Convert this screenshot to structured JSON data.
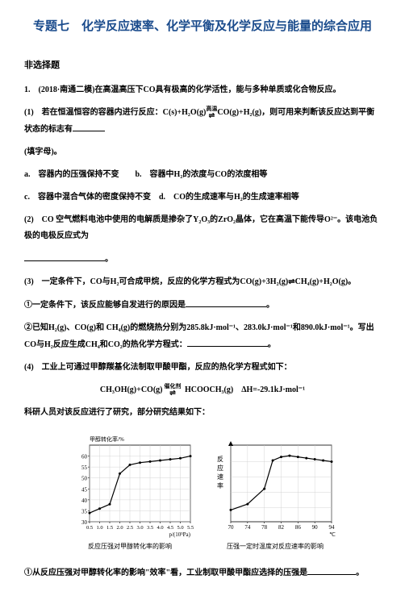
{
  "title": "专题七　化学反应速率、化学平衡及化学反应与能量的综合应用",
  "section_heading": "非选择题",
  "q1_intro": "1.　(2018·南通二模)在高温高压下CO具有极高的化学活性，能与多种单质或化合物反应。",
  "q1_1_prefix": "(1)　若在恒温恒容的容器内进行反应：C(s)+H₂O(g)",
  "q1_1_over": "高温",
  "q1_1_suffix": "CO(g)+H₂(g)，则可用来判断该反应达到平衡状态的标志有",
  "q1_1_tail": "(填字母)。",
  "opt_a": "a.　容器内的压强保持不变",
  "opt_b": "b.　容器中H₂的浓度与CO的浓度相等",
  "opt_c": "c.　容器中混合气体的密度保持不变",
  "opt_d": "d.　CO的生成速率与H₂的生成速率相等",
  "q1_2_prefix": "(2)　CO 空气燃料电池中使用的电解质是掺杂了Y₂O₃的ZrO₂晶体，它在高温下能传导O²⁻。该电池负极的电极反应式为",
  "period": "。",
  "q1_3": "(3)　一定条件下，CO与H₂可合成甲烷，反应的化学方程式为CO(g)+3H₂(g)⇌CH₄(g)+H₂O(g)。",
  "q1_3_1_prefix": "①一定条件下，该反应能够自发进行的原因是",
  "q1_3_2_prefix": "②已知H₂(g)、CO(g)和 CH₄(g)的燃烧热分别为285.8kJ·mol⁻¹、283.0kJ·mol⁻¹和890.0kJ·mol⁻¹。写出CO与H₂反应生成CH₄和CO₂的热化学方程式：",
  "q1_4": "(4)　工业上可通过甲醇羰基化法制取甲酸甲酯，反应的热化学方程式如下：",
  "eq_prefix": "CH₃OH(g)+CO(g)",
  "eq_over": "催化剂",
  "eq_suffix": " HCOOCH₃(g)　ΔH=-29.1kJ·mol⁻¹",
  "q1_4_study": "科研人员对该反应进行了研究，部分研究结果如下：",
  "chart1_caption": "反应压强对甲醇转化率的影响",
  "chart1_ylabel": "甲醇转化率/%",
  "chart1_xlabel": "p/(10⁵Pa)",
  "chart1_xlim": [
    0.5,
    5.5
  ],
  "chart1_ylim": [
    30,
    65
  ],
  "chart1_xticks": [
    0.5,
    1.0,
    1.5,
    2.0,
    2.5,
    3.0,
    3.5,
    4.0,
    4.5,
    5.0,
    5.5
  ],
  "chart1_yticks": [
    30,
    35,
    40,
    45,
    50,
    55,
    60
  ],
  "chart1_points": [
    [
      0.5,
      34
    ],
    [
      1.0,
      36
    ],
    [
      1.5,
      38
    ],
    [
      2.0,
      52
    ],
    [
      2.5,
      56
    ],
    [
      3.0,
      57
    ],
    [
      3.5,
      57.5
    ],
    [
      4.0,
      58
    ],
    [
      4.5,
      58.5
    ],
    [
      5.0,
      59
    ],
    [
      5.5,
      60
    ]
  ],
  "chart1_line_color": "#000000",
  "chart1_background": "#ffffff",
  "chart1_grid_color": "#cccccc",
  "chart2_caption": "压强一定时温度对反应速率的影响",
  "chart2_ylabel": "反应速率",
  "chart2_xlim": [
    70,
    94
  ],
  "chart2_xticks": [
    70,
    74,
    78,
    82,
    86,
    90,
    94
  ],
  "chart2_xunit": "℃",
  "chart2_points": [
    [
      70,
      10
    ],
    [
      74,
      15
    ],
    [
      78,
      28
    ],
    [
      80,
      52
    ],
    [
      82,
      55
    ],
    [
      84,
      56
    ],
    [
      86,
      55
    ],
    [
      88,
      54
    ],
    [
      90,
      53
    ],
    [
      92,
      52
    ],
    [
      94,
      51
    ]
  ],
  "chart2_line_color": "#000000",
  "chart2_background": "#ffffff",
  "chart2_grid_color": "#cccccc",
  "q1_4_1_prefix": "①从反应压强对甲醇转化率的影响\"效率\"看，工业制取甲酸甲酯应选择的压强是"
}
